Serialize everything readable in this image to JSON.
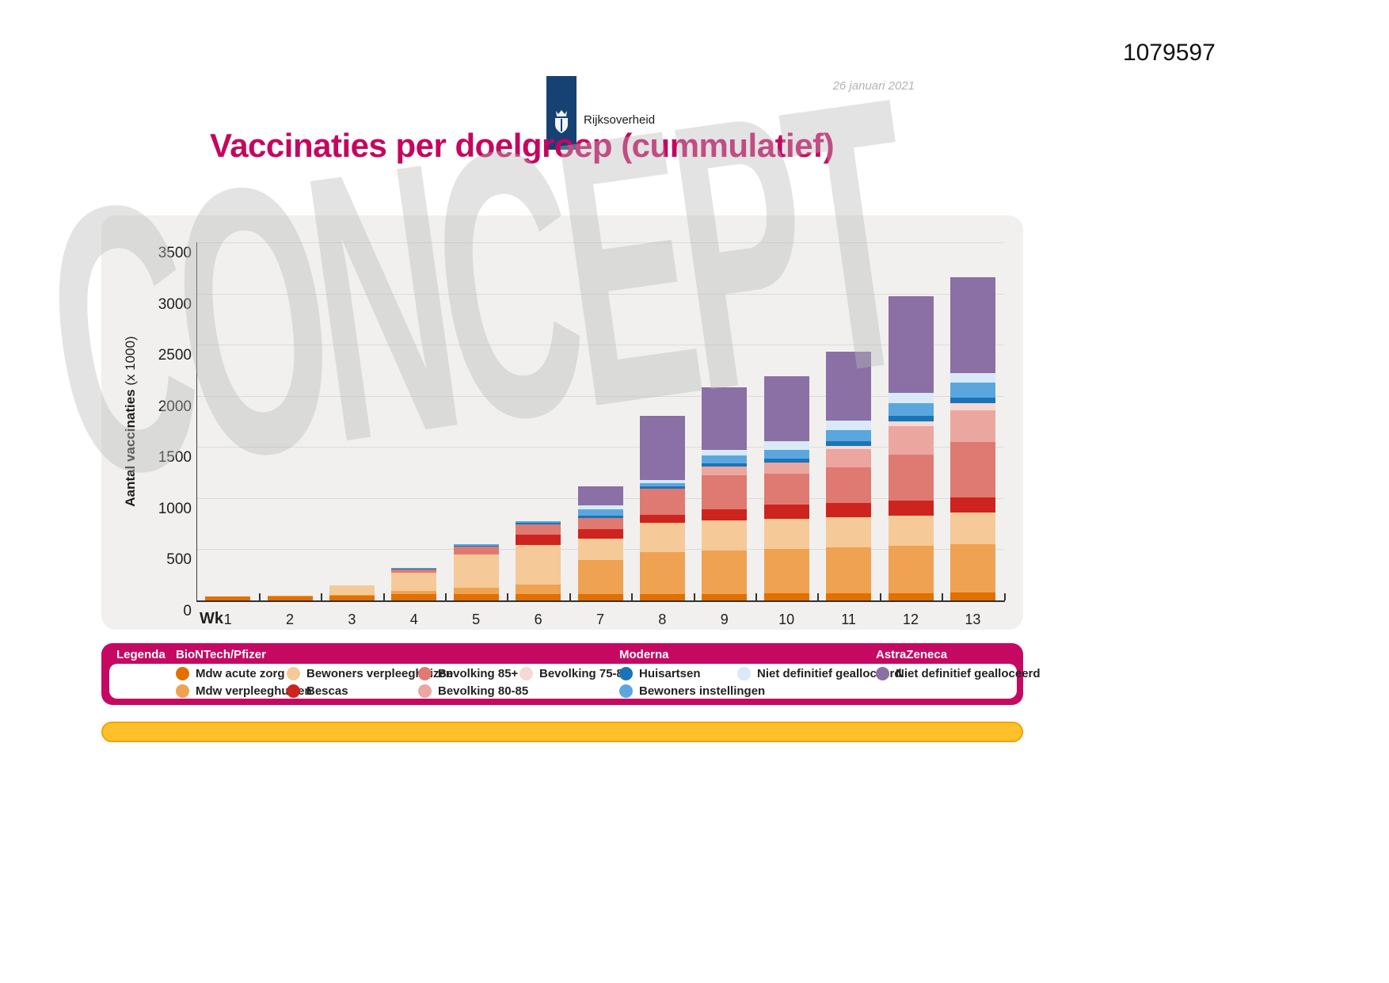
{
  "page": {
    "doc_id": "1079597",
    "logo_text": "Rijksoverheid",
    "date": "26 januari 2021",
    "title": "Vaccinaties per doelgroep (cummulatief)",
    "watermark": "CONCEPT"
  },
  "chart_data": {
    "type": "bar",
    "stacked": true,
    "title": "Vaccinaties per doelgroep (cummulatief)",
    "ylabel": "Aantal vaccinaties",
    "ylabel_unit": " (x 1000)",
    "x_prefix": "Wk",
    "categories": [
      "1",
      "2",
      "3",
      "4",
      "5",
      "6",
      "7",
      "8",
      "9",
      "10",
      "11",
      "12",
      "13"
    ],
    "ylim": [
      0,
      3500
    ],
    "y_ticks": [
      0,
      500,
      1000,
      1500,
      2000,
      2500,
      3000,
      3500
    ],
    "grid": true,
    "legend_position": "bottom",
    "series": [
      {
        "name": "Mdw acute zorg",
        "vendor": "BioNTech/Pfizer",
        "color": "#E17000",
        "legend_col": 0,
        "legend_row": 0,
        "values": [
          35,
          40,
          45,
          62,
          62,
          62,
          62,
          62,
          65,
          68,
          70,
          73,
          75
        ]
      },
      {
        "name": "Mdw verpleeghuizen",
        "vendor": "BioNTech/Pfizer",
        "color": "#EFA252",
        "legend_col": 0,
        "legend_row": 1,
        "values": [
          0,
          8,
          10,
          30,
          65,
          90,
          335,
          413,
          425,
          437,
          445,
          462,
          477
        ]
      },
      {
        "name": "Bewoners verpleeghuizen",
        "vendor": "BioNTech/Pfizer",
        "color": "#F6C998",
        "legend_col": 1,
        "legend_row": 0,
        "values": [
          0,
          0,
          95,
          176,
          322,
          387,
          207,
          283,
          290,
          295,
          295,
          295,
          309
        ]
      },
      {
        "name": "Bescas",
        "vendor": "BioNTech/Pfizer",
        "color": "#CE2420",
        "legend_col": 1,
        "legend_row": 1,
        "values": [
          0,
          0,
          0,
          0,
          0,
          103,
          90,
          78,
          110,
          135,
          142,
          142,
          143
        ]
      },
      {
        "name": "Bevolking 85+",
        "vendor": "BioNTech/Pfizer",
        "color": "#DF7A72",
        "legend_col": 2,
        "legend_row": 0,
        "values": [
          0,
          0,
          0,
          32,
          77,
          103,
          109,
          253,
          330,
          300,
          348,
          450,
          541
        ]
      },
      {
        "name": "Bevolking 80-85",
        "vendor": "BioNTech/Pfizer",
        "color": "#EBA6A0",
        "legend_col": 2,
        "legend_row": 1,
        "values": [
          0,
          0,
          0,
          0,
          0,
          0,
          0,
          0,
          90,
          110,
          181,
          280,
          310
        ]
      },
      {
        "name": "Bevolking 75-80",
        "vendor": "BioNTech/Pfizer",
        "color": "#F6D8D5",
        "legend_col": 3,
        "legend_row": 0,
        "values": [
          0,
          0,
          0,
          0,
          0,
          0,
          0,
          0,
          0,
          0,
          30,
          50,
          70
        ]
      },
      {
        "name": "Huisartsen",
        "vendor": "Moderna",
        "color": "#1B74B8",
        "legend_col": 4,
        "legend_row": 0,
        "values": [
          0,
          0,
          0,
          8,
          10,
          13,
          25,
          26,
          30,
          38,
          44,
          52,
          59
        ]
      },
      {
        "name": "Bewoners instellingen",
        "vendor": "Moderna",
        "color": "#5BA7DD",
        "legend_col": 4,
        "legend_row": 1,
        "values": [
          0,
          0,
          0,
          6,
          11,
          13,
          60,
          31,
          80,
          91,
          111,
          125,
          142
        ]
      },
      {
        "name": "Niet definitief gealloceerd",
        "vendor": "Moderna",
        "color": "#D9E9F7",
        "legend_col": 5,
        "legend_row": 0,
        "values": [
          0,
          0,
          0,
          0,
          0,
          0,
          38,
          33,
          50,
          85,
          95,
          96,
          98
        ]
      },
      {
        "name": "Niet definitief gealloceerd",
        "vendor": "AstraZeneca",
        "color": "#8A70A5",
        "legend_col": 6,
        "legend_row": 0,
        "values": [
          0,
          0,
          0,
          0,
          0,
          0,
          186,
          622,
          610,
          629,
          670,
          950,
          934
        ]
      }
    ]
  },
  "legend": {
    "title": "Legenda",
    "group_headers": [
      {
        "label": "BioNTech/Pfizer",
        "col": 0
      },
      {
        "label": "Moderna",
        "col": 4
      },
      {
        "label": "AstraZeneca",
        "col": 6
      }
    ]
  }
}
